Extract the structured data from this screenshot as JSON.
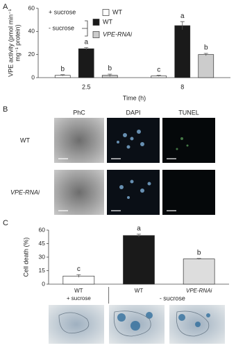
{
  "panel_labels": [
    "A",
    "B",
    "C"
  ],
  "chart_data": [
    {
      "type": "bar",
      "ylabel": [
        "VPE activity (pmol min⁻¹",
        "mg⁻¹ protein)"
      ],
      "xlabel": "Time (h)",
      "categories": [
        "2.5",
        "8"
      ],
      "legend_groups": [
        "+ sucrose",
        "- sucrose"
      ],
      "series": [
        {
          "name": "WT",
          "color": "#ffffff",
          "values": [
            2,
            1.5
          ],
          "errors": [
            0.5,
            0.5
          ],
          "letters": [
            "b",
            "c"
          ]
        },
        {
          "name": "WT",
          "color": "#1a1a1a",
          "values": [
            25,
            45
          ],
          "errors": [
            1,
            3.5
          ],
          "letters": [
            "a",
            "a"
          ]
        },
        {
          "name": "VPE-RNAi",
          "color": "#cccccc",
          "values": [
            2,
            20
          ],
          "errors": [
            1,
            1
          ],
          "letters": [
            "b",
            "b"
          ]
        }
      ],
      "ylim": [
        0,
        60
      ],
      "yticks": [
        0,
        20,
        40,
        60
      ]
    },
    {
      "type": "bar",
      "ylabel": [
        "Cell death (%)"
      ],
      "categories": [
        "WT",
        "WT",
        "VPE-RNAi"
      ],
      "category_groups": [
        "+ sucrose",
        "- sucrose"
      ],
      "colors": [
        "#ffffff",
        "#1a1a1a",
        "#dddddd"
      ],
      "values": [
        9,
        54,
        28
      ],
      "errors": [
        1.5,
        1.5,
        0.5
      ],
      "letters": [
        "c",
        "a",
        "b"
      ],
      "ylim": [
        0,
        60
      ],
      "yticks": [
        0,
        15,
        30,
        45,
        60
      ]
    }
  ],
  "micrographs": {
    "columns": [
      "PhC",
      "DAPI",
      "TUNEL"
    ],
    "rows": [
      "WT",
      "VPE-RNAi"
    ]
  }
}
